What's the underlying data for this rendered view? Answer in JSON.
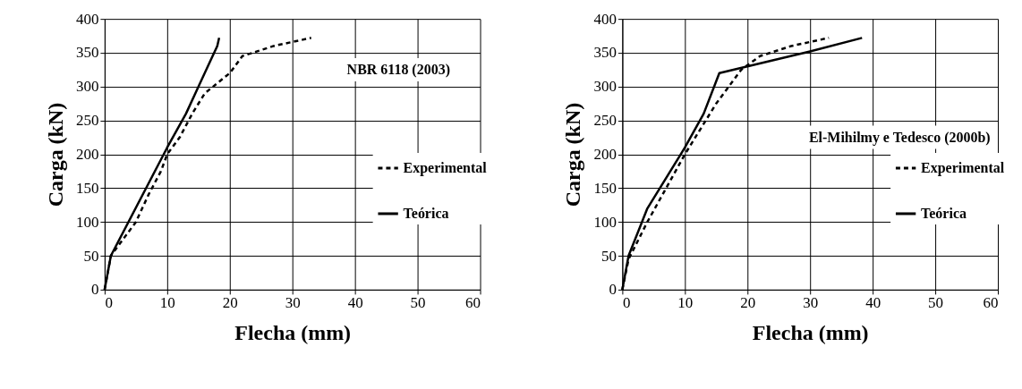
{
  "chart_data": [
    {
      "type": "line",
      "xlabel": "Flecha (mm)",
      "ylabel": "Carga (kN)",
      "xlim": [
        0,
        60
      ],
      "ylim": [
        0,
        400
      ],
      "xticks": [
        0,
        10,
        20,
        30,
        40,
        50,
        60
      ],
      "yticks": [
        0,
        50,
        100,
        150,
        200,
        250,
        300,
        350,
        400
      ],
      "grid": true,
      "legend": "right",
      "marker": "none",
      "annotations": [
        "NBR 6118 (2003)"
      ],
      "series": [
        {
          "name": "Experimental",
          "color": "#000000",
          "line_style": "dashed",
          "x": [
            0,
            1,
            3,
            5,
            7,
            9,
            10,
            12,
            14,
            16,
            18,
            20,
            22,
            27,
            33
          ],
          "values": [
            0,
            50,
            75,
            100,
            140,
            175,
            200,
            225,
            260,
            290,
            305,
            320,
            345,
            360,
            372
          ]
        },
        {
          "name": "Teórica",
          "color": "#000000",
          "line_style": "solid",
          "x": [
            0,
            1,
            10,
            13,
            15,
            17,
            18,
            18.3
          ],
          "values": [
            0,
            50,
            210,
            260,
            300,
            340,
            360,
            372
          ]
        }
      ]
    },
    {
      "type": "line",
      "xlabel": "Flecha (mm)",
      "ylabel": "Carga (kN)",
      "xlim": [
        0,
        60
      ],
      "ylim": [
        0,
        400
      ],
      "xticks": [
        0,
        10,
        20,
        30,
        40,
        50,
        60
      ],
      "yticks": [
        0,
        50,
        100,
        150,
        200,
        250,
        300,
        350,
        400
      ],
      "grid": true,
      "legend": "right",
      "marker": "none",
      "annotations": [
        "El-Mihilmy e Tedesco (2000b)"
      ],
      "series": [
        {
          "name": "Experimental",
          "color": "#000000",
          "line_style": "dashed",
          "x": [
            0,
            1,
            4,
            7,
            10,
            12,
            15,
            17,
            19,
            22,
            27,
            33
          ],
          "values": [
            0,
            45,
            100,
            150,
            200,
            230,
            275,
            300,
            325,
            345,
            360,
            372
          ]
        },
        {
          "name": "Teórica",
          "color": "#000000",
          "line_style": "solid",
          "x": [
            0,
            1,
            4,
            10,
            13,
            15.5,
            30,
            38.3
          ],
          "values": [
            0,
            50,
            120,
            210,
            260,
            320,
            352,
            372
          ]
        }
      ]
    }
  ]
}
